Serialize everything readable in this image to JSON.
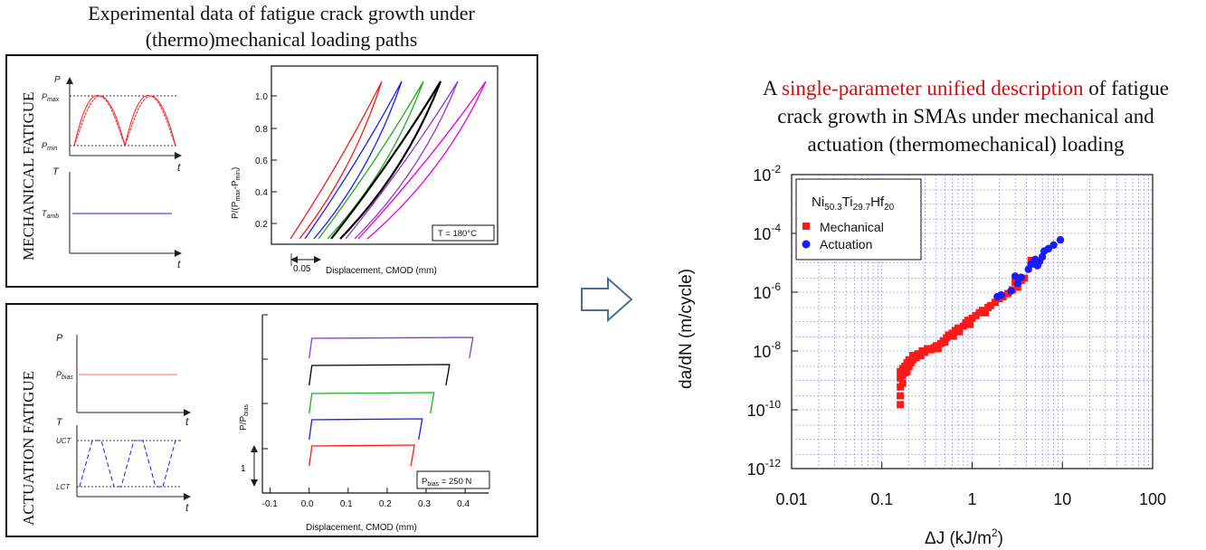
{
  "left_title_line1": "Experimental data of fatigue crack growth under",
  "left_title_line2": "(thermo)mechanical loading paths",
  "right_title": {
    "pre": "A ",
    "highlight": "single-parameter unified description",
    "post_line1": " of fatigue",
    "line2": "crack growth in SMAs under mechanical and",
    "line3": "actuation (thermomechanical) loading",
    "highlight_color": "#cc1111"
  },
  "mechanical": {
    "side_label": "MECHANICAL FATIGUE",
    "p_axis": "P",
    "t_axis": "t",
    "T_axis": "T",
    "p_max": "P",
    "p_max_sub": "max",
    "p_min": "P",
    "p_min_sub": "min",
    "t_amb": "T",
    "t_amb_sub": "amb",
    "ylabel": "P/(P",
    "ylabel_parts": [
      "P/(P",
      "max",
      "-P",
      "min",
      ")"
    ],
    "yticks": [
      "1.0",
      "0.8",
      "0.6",
      "0.4",
      "0.2"
    ],
    "xlabel": "Displacement, CMOD (mm)",
    "scale_label": "0.05",
    "legend": "T = 180°C",
    "loop_colors": [
      "#ff1a1a",
      "#1a1aff",
      "#1ab31a",
      "#000000",
      "#9933cc",
      "#e600e6"
    ]
  },
  "actuation": {
    "side_label": "ACTUATION FATIGUE",
    "p_axis": "P",
    "t_axis": "t",
    "T_axis": "T",
    "p_bias": "P",
    "p_bias_sub": "bias",
    "uct": "UCT",
    "lct": "LCT",
    "ylabel_parts": [
      "P/P",
      "bias"
    ],
    "xticks": [
      "-0.1",
      "0.0",
      "0.1",
      "0.2",
      "0.3",
      "0.4"
    ],
    "xlabel": "Displacement, CMOD (mm)",
    "scale_label": "1",
    "legend_parts": [
      "P",
      "bias",
      " = 250 N"
    ],
    "loop_colors": [
      "#ff1a1a",
      "#1a1aff",
      "#1ab31a",
      "#000000",
      "#9933cc"
    ]
  },
  "chart_data": {
    "type": "scatter",
    "xscale": "log",
    "yscale": "log",
    "xlim": [
      0.01,
      100
    ],
    "ylim": [
      1e-12,
      0.01
    ],
    "xticks": [
      "0.01",
      "0.1",
      "1",
      "10",
      "100"
    ],
    "yticks": [
      "10",
      "10",
      "10",
      "10",
      "10",
      "10"
    ],
    "ytick_exponents": [
      "-2",
      "-4",
      "-6",
      "-8",
      "-10",
      "-12"
    ],
    "xlabel": "ΔJ (kJ/m",
    "xlabel_sup": "2",
    "xlabel_end": ")",
    "ylabel": "da/dN (m/cycle)",
    "legend_title_parts": [
      "Ni",
      "50.3",
      "Ti",
      "29.7",
      "Hf",
      "20"
    ],
    "grid": true,
    "legend_position": "top-left",
    "series": [
      {
        "name": "Mechanical",
        "color": "#ff1a1a",
        "marker": "square",
        "points": [
          [
            0.16,
            1.5e-10
          ],
          [
            0.16,
            3e-10
          ],
          [
            0.16,
            6e-10
          ],
          [
            0.16,
            1.2e-09
          ],
          [
            0.16,
            2e-09
          ],
          [
            0.17,
            8e-10
          ],
          [
            0.17,
            1.5e-09
          ],
          [
            0.17,
            2.5e-09
          ],
          [
            0.18,
            1.8e-09
          ],
          [
            0.18,
            3e-09
          ],
          [
            0.19,
            2e-09
          ],
          [
            0.19,
            4e-09
          ],
          [
            0.2,
            3e-09
          ],
          [
            0.2,
            5e-09
          ],
          [
            0.21,
            4e-09
          ],
          [
            0.22,
            5e-09
          ],
          [
            0.22,
            7e-09
          ],
          [
            0.24,
            6e-09
          ],
          [
            0.25,
            8e-09
          ],
          [
            0.27,
            7e-09
          ],
          [
            0.28,
            1e-08
          ],
          [
            0.3,
            9e-09
          ],
          [
            0.32,
            1.2e-08
          ],
          [
            0.35,
            1.1e-08
          ],
          [
            0.38,
            1.3e-08
          ],
          [
            0.4,
            1.5e-08
          ],
          [
            0.42,
            1.2e-08
          ],
          [
            0.45,
            1.8e-08
          ],
          [
            0.48,
            2.2e-08
          ],
          [
            0.5,
            2e-08
          ],
          [
            0.52,
            2.8e-08
          ],
          [
            0.55,
            3.5e-08
          ],
          [
            0.6,
            4e-08
          ],
          [
            0.62,
            3.2e-08
          ],
          [
            0.65,
            5e-08
          ],
          [
            0.7,
            6e-08
          ],
          [
            0.72,
            4.5e-08
          ],
          [
            0.8,
            7e-08
          ],
          [
            0.85,
            9e-08
          ],
          [
            0.9,
            1.1e-07
          ],
          [
            0.95,
            8e-08
          ],
          [
            1.0,
            1.3e-07
          ],
          [
            1.1,
            1.6e-07
          ],
          [
            1.2,
            2e-07
          ],
          [
            1.3,
            2.4e-07
          ],
          [
            1.4,
            2e-07
          ],
          [
            1.5,
            3e-07
          ],
          [
            1.6,
            3.5e-07
          ],
          [
            1.8,
            4.5e-07
          ],
          [
            2.0,
            6e-07
          ],
          [
            2.2,
            7e-07
          ],
          [
            2.5,
            9e-07
          ],
          [
            2.8,
            1.2e-06
          ],
          [
            3.0,
            2.2e-06
          ],
          [
            3.2,
            1.5e-06
          ],
          [
            3.5,
            2.5e-06
          ],
          [
            3.8,
            3e-06
          ],
          [
            4.5,
            1.2e-05
          ],
          [
            5.0,
            9e-06
          ]
        ]
      },
      {
        "name": "Actuation",
        "color": "#1a1aff",
        "marker": "circle",
        "points": [
          [
            1.9,
            7e-07
          ],
          [
            2.1,
            8e-07
          ],
          [
            2.7,
            1.1e-06
          ],
          [
            3.0,
            3.5e-06
          ],
          [
            3.2,
            2e-06
          ],
          [
            3.5,
            3.2e-06
          ],
          [
            4.2,
            6e-06
          ],
          [
            4.5,
            9e-06
          ],
          [
            5.0,
            1.3e-05
          ],
          [
            5.3,
            8e-06
          ],
          [
            5.6,
            1.1e-05
          ],
          [
            6.0,
            1.6e-05
          ],
          [
            6.3,
            2.5e-05
          ],
          [
            7.0,
            3e-05
          ],
          [
            8.0,
            4e-05
          ],
          [
            9.5,
            6e-05
          ]
        ]
      }
    ]
  }
}
